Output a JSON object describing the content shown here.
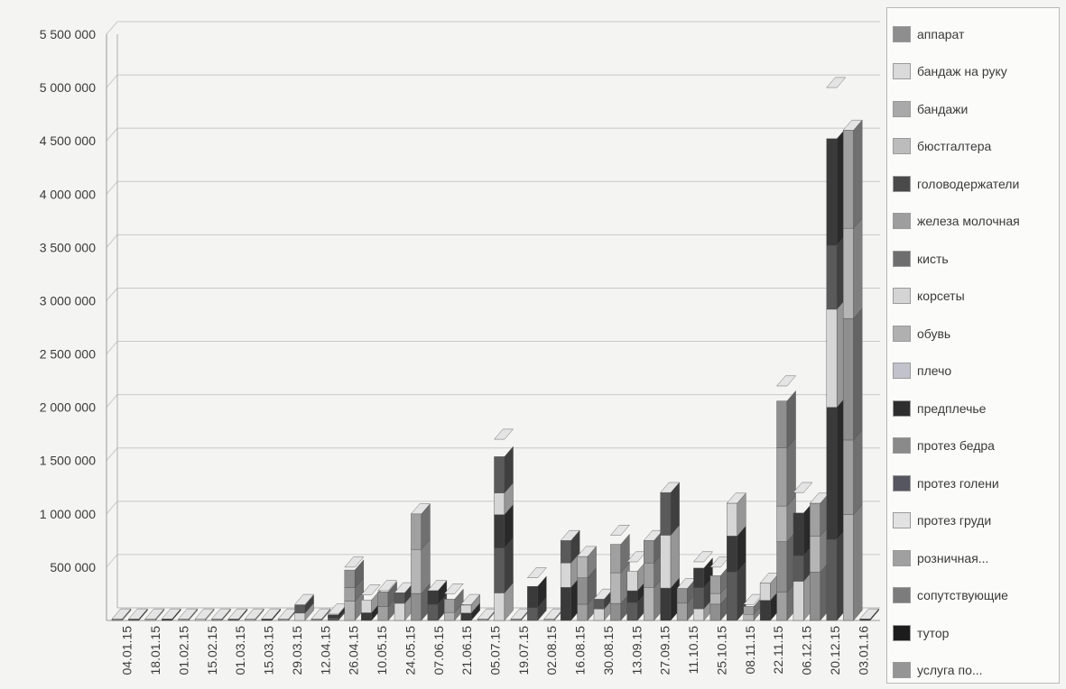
{
  "chart_data": {
    "type": "bar",
    "stacked": true,
    "three_d": true,
    "title": "",
    "xlabel": "",
    "ylabel": "",
    "ylim": [
      0,
      5500000
    ],
    "y_ticks": [
      500000,
      1000000,
      1500000,
      2000000,
      2500000,
      3000000,
      3500000,
      4000000,
      4500000,
      5000000,
      5500000
    ],
    "y_tick_labels": [
      "500 000",
      "1 000 000",
      "1 500 000",
      "2 000 000",
      "2 500 000",
      "3 000 000",
      "3 500 000",
      "4 000 000",
      "4 500 000",
      "5 000 000",
      "5 500 000"
    ],
    "grid": true,
    "legend_position": "right",
    "x_tick_labels": [
      "04.01.15",
      "18.01.15",
      "01.02.15",
      "15.02.15",
      "01.03.15",
      "15.03.15",
      "29.03.15",
      "12.04.15",
      "26.04.15",
      "10.05.15",
      "24.05.15",
      "07.06.15",
      "21.06.15",
      "05.07.15",
      "19.07.15",
      "02.08.15",
      "16.08.15",
      "30.08.15",
      "13.09.15",
      "27.09.15",
      "11.10.15",
      "25.10.15",
      "08.11.15",
      "22.11.15",
      "06.12.15",
      "20.12.15",
      "03.01.16"
    ],
    "bar_totals": [
      0,
      0,
      0,
      0,
      0,
      0,
      0,
      0,
      0,
      0,
      0,
      150000,
      0,
      60000,
      500000,
      240000,
      280000,
      260000,
      1000000,
      280000,
      250000,
      150000,
      0,
      1700000,
      0,
      400000,
      0,
      750000,
      600000,
      200000,
      800000,
      550000,
      750000,
      1200000,
      300000,
      550000,
      500000,
      1100000,
      150000,
      350000,
      2200000,
      1200000,
      1100000,
      5000000,
      4600000,
      0
    ],
    "series": [
      {
        "name": "аппарат",
        "color": "#8e8e8e"
      },
      {
        "name": "бандаж на руку",
        "color": "#dadada"
      },
      {
        "name": "бандажи",
        "color": "#a9a9a9"
      },
      {
        "name": "бюстгалтера",
        "color": "#bcbcbc"
      },
      {
        "name": "головодержатели",
        "color": "#4a4a4a"
      },
      {
        "name": "железа молочная",
        "color": "#9e9e9e"
      },
      {
        "name": "кисть",
        "color": "#6e6e6e"
      },
      {
        "name": "корсеты",
        "color": "#d4d4d4"
      },
      {
        "name": "обувь",
        "color": "#b0b0b0"
      },
      {
        "name": "плечо",
        "color": "#c2c2cc"
      },
      {
        "name": "предплечье",
        "color": "#2e2e2e"
      },
      {
        "name": "протез бедра",
        "color": "#8a8a8a"
      },
      {
        "name": "протез голени",
        "color": "#565660"
      },
      {
        "name": "протез груди",
        "color": "#e2e2e2"
      },
      {
        "name": "розничная...",
        "color": "#a0a0a0"
      },
      {
        "name": "сопутствующие",
        "color": "#7c7c7c"
      },
      {
        "name": "тутор",
        "color": "#1c1c1c"
      },
      {
        "name": "услуга по...",
        "color": "#959595"
      }
    ]
  }
}
